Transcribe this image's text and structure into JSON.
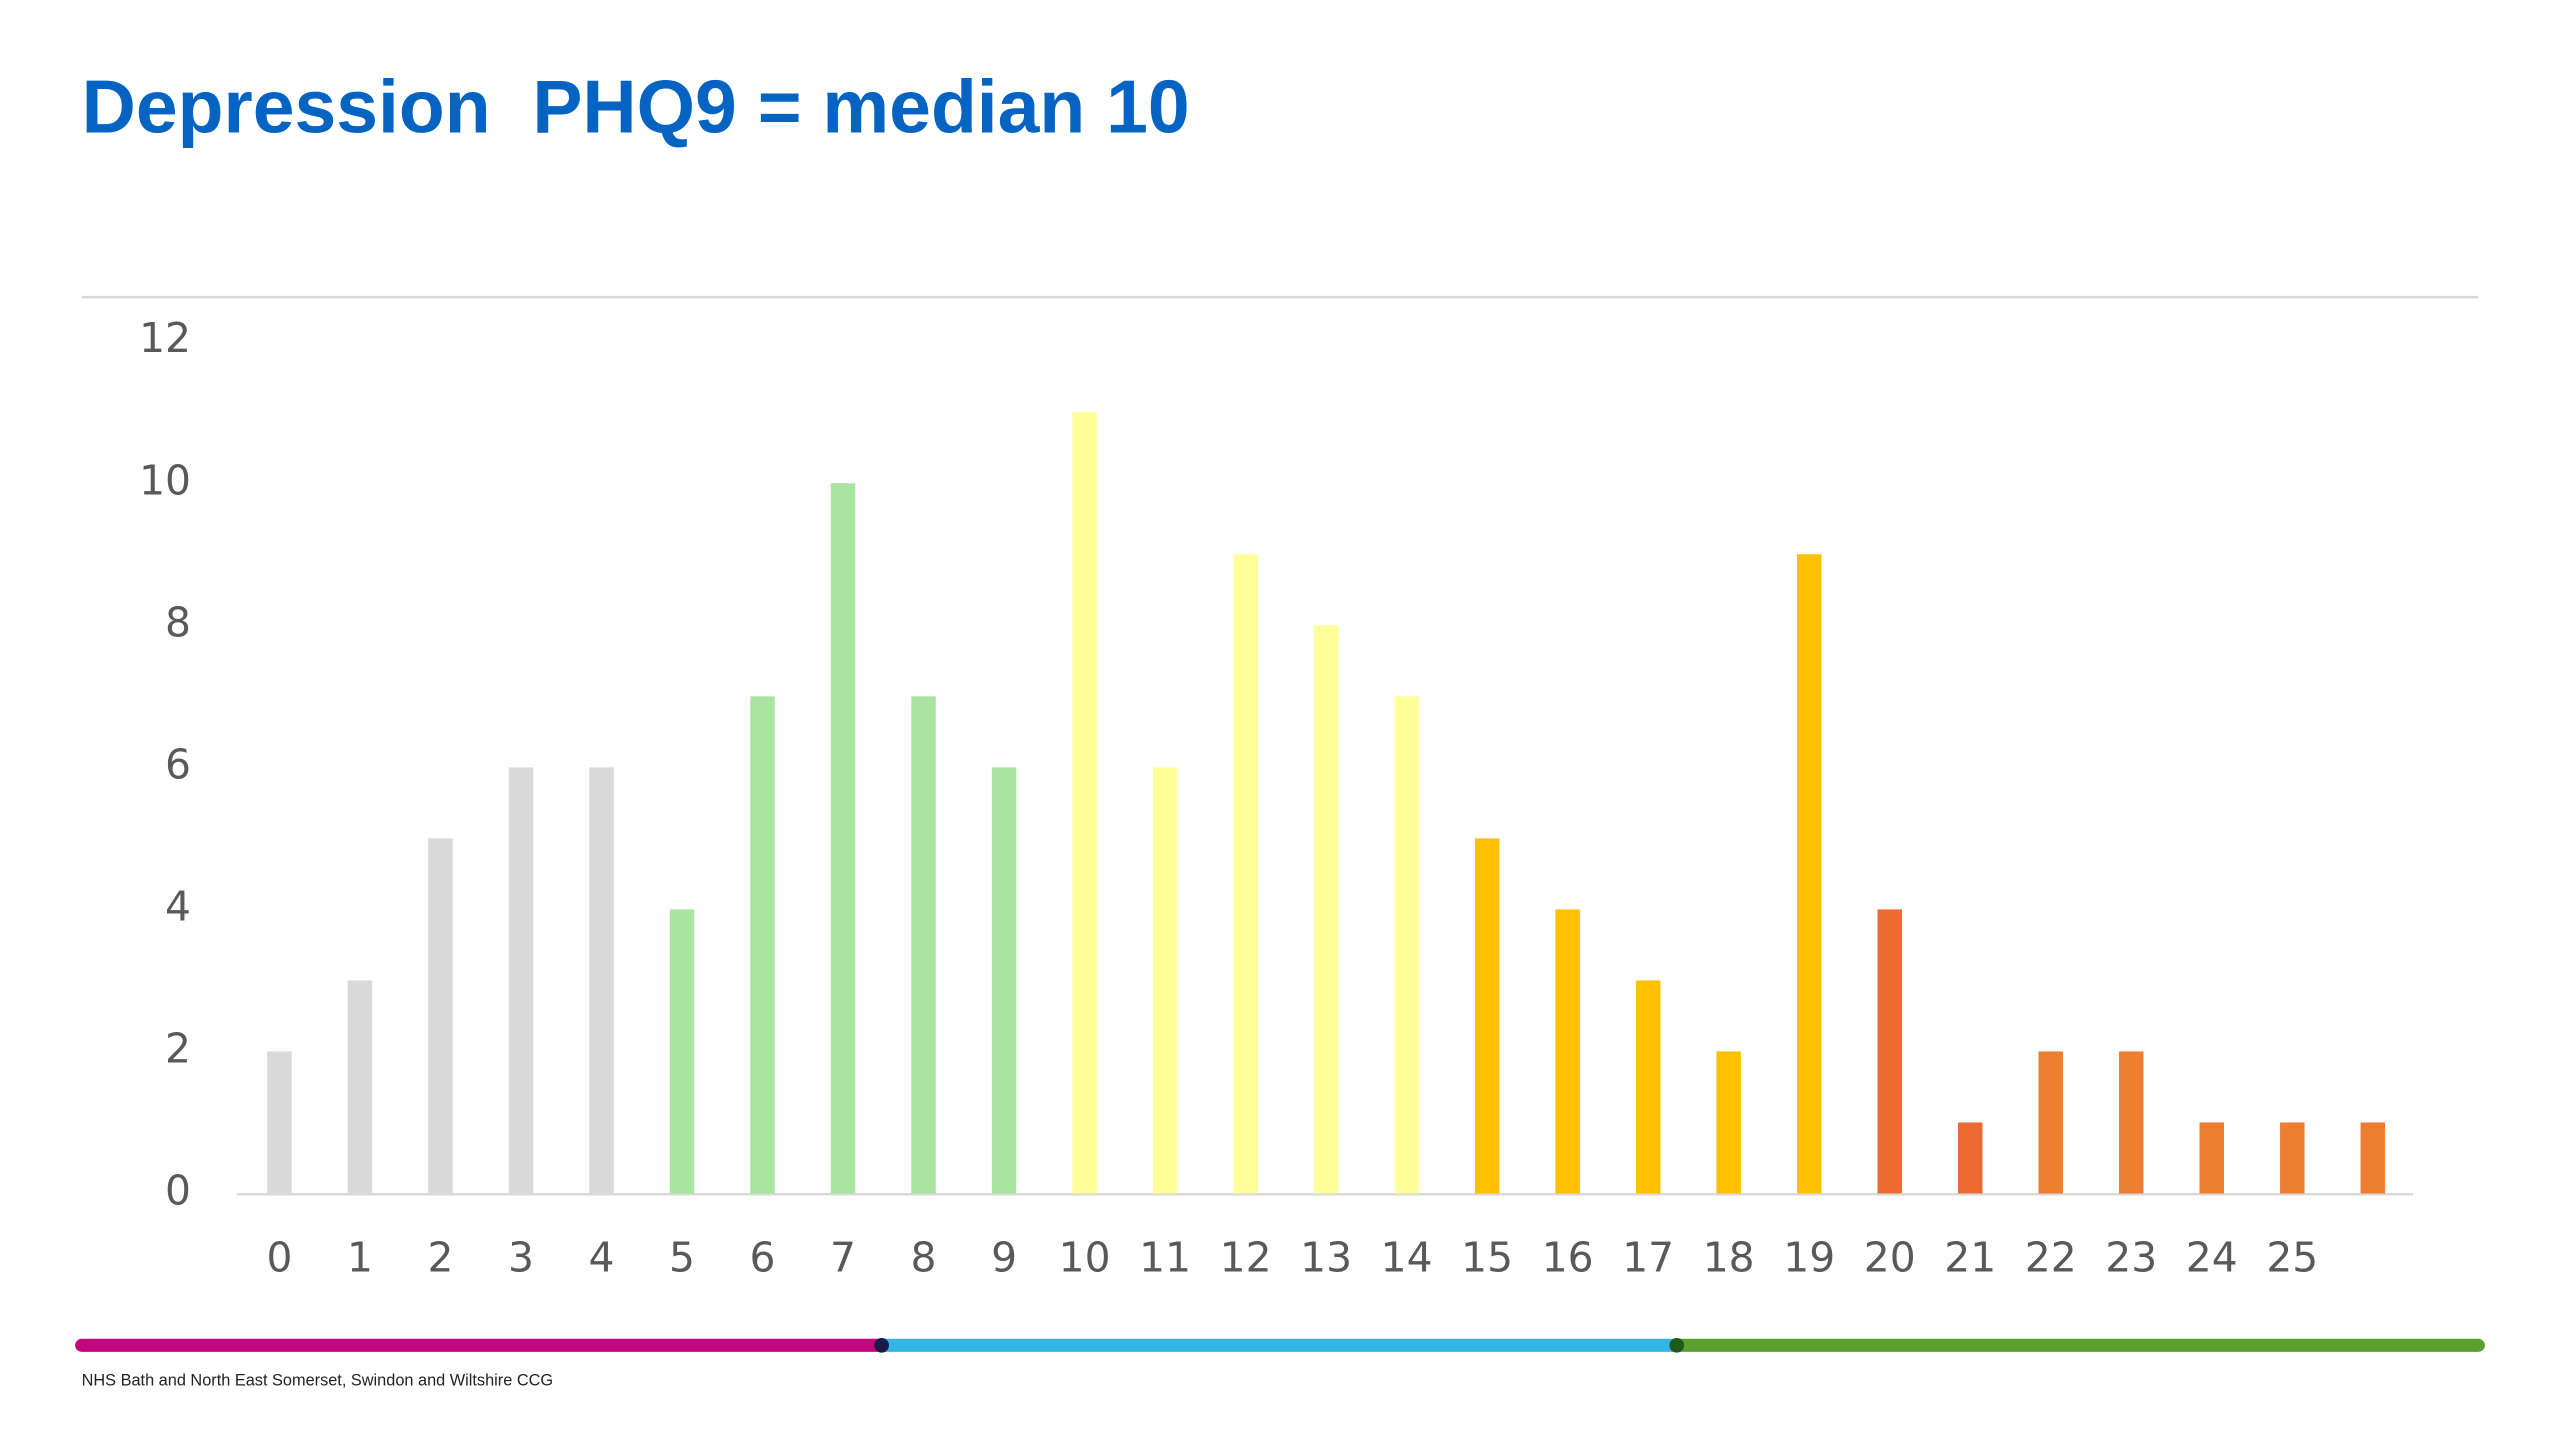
{
  "chart_data": {
    "type": "bar",
    "title": "Depression  PHQ9 = median 10",
    "categories": [
      "0",
      "1",
      "2",
      "3",
      "4",
      "5",
      "6",
      "7",
      "8",
      "9",
      "10",
      "11",
      "12",
      "13",
      "14",
      "15",
      "16",
      "17",
      "18",
      "19",
      "20",
      "21",
      "22",
      "23",
      "24",
      "25",
      null
    ],
    "values": [
      2,
      3,
      5,
      6,
      6,
      4,
      7,
      10,
      7,
      6,
      11,
      6,
      9,
      8,
      7,
      5,
      4,
      3,
      2,
      9,
      4,
      1,
      2,
      2,
      1,
      1,
      1
    ],
    "colors": [
      "#d9d9d9",
      "#d9d9d9",
      "#d9d9d9",
      "#d9d9d9",
      "#d9d9d9",
      "#a9e5a0",
      "#a9e5a0",
      "#a9e5a0",
      "#a9e5a0",
      "#a9e5a0",
      "#ffff99",
      "#ffff99",
      "#ffff99",
      "#ffff99",
      "#ffff99",
      "#ffc000",
      "#ffc000",
      "#ffc000",
      "#ffc000",
      "#ffc000",
      "#ed6a32",
      "#ed6a32",
      "#ed7d31",
      "#ed7d31",
      "#ed7d31",
      "#ed7d31",
      "#ed7d31"
    ],
    "ylim": [
      0,
      12
    ],
    "yticks": [
      0,
      2,
      4,
      6,
      8,
      10,
      12
    ],
    "grid": false
  },
  "footer": "NHS Bath and North East Somerset, Swindon and Wiltshire CCG"
}
